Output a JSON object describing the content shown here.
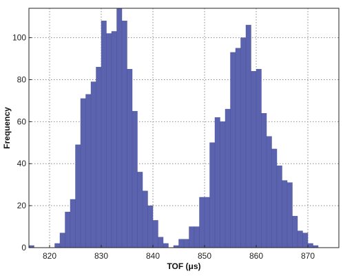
{
  "chart_data": {
    "type": "bar",
    "xlabel": "TOF (μs)",
    "ylabel": "Frequency",
    "xlim": [
      816,
      876
    ],
    "ylim": [
      0,
      114
    ],
    "bin_width": 1,
    "grid": true,
    "bar_color": "#5b63ae",
    "xticks": [
      820,
      830,
      840,
      850,
      860,
      870
    ],
    "yticks": [
      0,
      20,
      40,
      60,
      80,
      100
    ],
    "bins": [
      {
        "x": 816,
        "y": 1
      },
      {
        "x": 817,
        "y": 0
      },
      {
        "x": 818,
        "y": 0
      },
      {
        "x": 819,
        "y": 0
      },
      {
        "x": 820,
        "y": 0
      },
      {
        "x": 821,
        "y": 2
      },
      {
        "x": 822,
        "y": 7
      },
      {
        "x": 823,
        "y": 17
      },
      {
        "x": 824,
        "y": 23
      },
      {
        "x": 825,
        "y": 49
      },
      {
        "x": 826,
        "y": 71
      },
      {
        "x": 827,
        "y": 73
      },
      {
        "x": 828,
        "y": 79
      },
      {
        "x": 829,
        "y": 86
      },
      {
        "x": 830,
        "y": 108
      },
      {
        "x": 831,
        "y": 102
      },
      {
        "x": 832,
        "y": 103
      },
      {
        "x": 833,
        "y": 114
      },
      {
        "x": 834,
        "y": 108
      },
      {
        "x": 835,
        "y": 85
      },
      {
        "x": 836,
        "y": 65
      },
      {
        "x": 837,
        "y": 36
      },
      {
        "x": 838,
        "y": 27
      },
      {
        "x": 839,
        "y": 20
      },
      {
        "x": 840,
        "y": 13
      },
      {
        "x": 841,
        "y": 5
      },
      {
        "x": 842,
        "y": 2
      },
      {
        "x": 843,
        "y": 0
      },
      {
        "x": 844,
        "y": 1
      },
      {
        "x": 845,
        "y": 4
      },
      {
        "x": 846,
        "y": 4
      },
      {
        "x": 847,
        "y": 10
      },
      {
        "x": 848,
        "y": 10
      },
      {
        "x": 849,
        "y": 24
      },
      {
        "x": 850,
        "y": 24
      },
      {
        "x": 851,
        "y": 50
      },
      {
        "x": 852,
        "y": 62
      },
      {
        "x": 853,
        "y": 60
      },
      {
        "x": 854,
        "y": 66
      },
      {
        "x": 855,
        "y": 93
      },
      {
        "x": 856,
        "y": 95
      },
      {
        "x": 857,
        "y": 100
      },
      {
        "x": 858,
        "y": 106
      },
      {
        "x": 859,
        "y": 84
      },
      {
        "x": 860,
        "y": 85
      },
      {
        "x": 861,
        "y": 64
      },
      {
        "x": 862,
        "y": 53
      },
      {
        "x": 863,
        "y": 47
      },
      {
        "x": 864,
        "y": 39
      },
      {
        "x": 865,
        "y": 32
      },
      {
        "x": 866,
        "y": 31
      },
      {
        "x": 867,
        "y": 15
      },
      {
        "x": 868,
        "y": 8
      },
      {
        "x": 869,
        "y": 7
      },
      {
        "x": 870,
        "y": 2
      },
      {
        "x": 871,
        "y": 1
      }
    ]
  }
}
